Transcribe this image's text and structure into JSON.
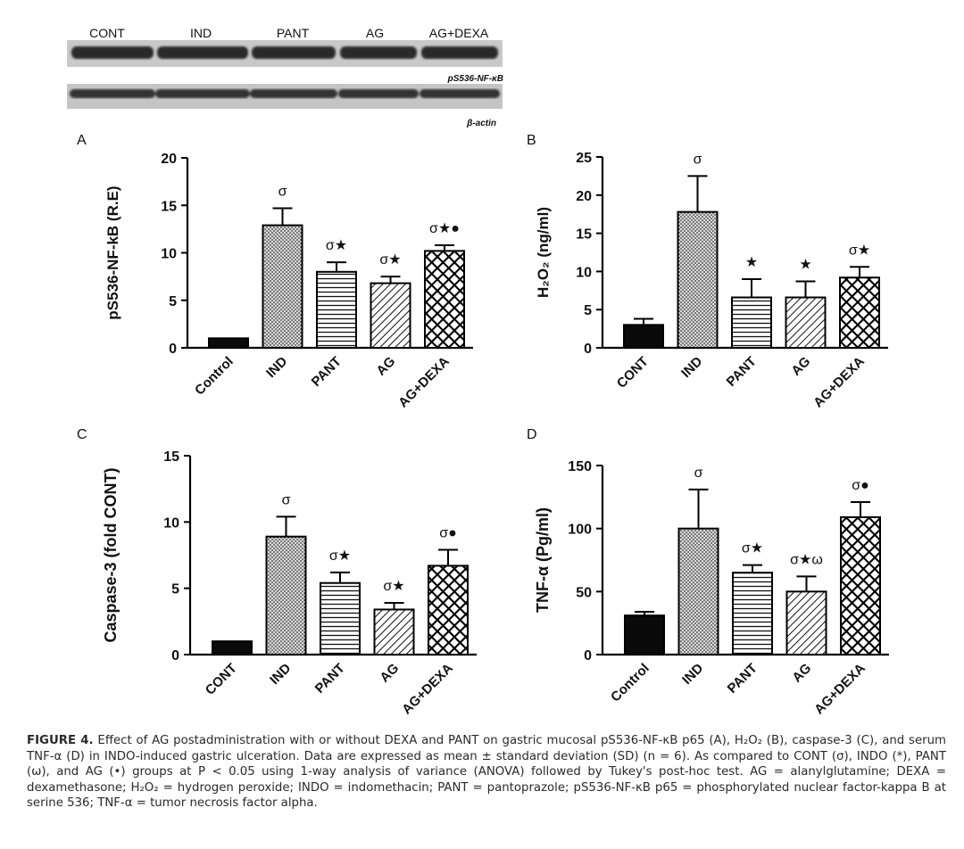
{
  "blot": {
    "lanes": [
      "CONT",
      "IND",
      "PANT",
      "AG",
      "AG+DEXA"
    ],
    "band1_label": "pS536-NF-κB",
    "band2_label": "β-actin"
  },
  "chart_data": [
    {
      "panel": "A",
      "type": "bar",
      "ylabel": "pS536-NF-kB (R.E)",
      "categories": [
        "Control",
        "IND",
        "PANT",
        "AG",
        "AG+DEXA"
      ],
      "values": [
        1.0,
        12.9,
        8.0,
        6.8,
        10.2
      ],
      "errors": [
        0.0,
        1.8,
        1.0,
        0.7,
        0.6
      ],
      "annotations": [
        "",
        "σ",
        "σ★",
        "σ★",
        "σ★●"
      ],
      "ylim": [
        0,
        20
      ],
      "yticks": [
        0,
        5,
        10,
        15,
        20
      ]
    },
    {
      "panel": "B",
      "type": "bar",
      "ylabel": "H₂O₂ (ng/ml)",
      "categories": [
        "CONT",
        "IND",
        "PANT",
        "AG",
        "AG+DEXA"
      ],
      "values": [
        3.0,
        17.8,
        6.6,
        6.6,
        9.2
      ],
      "errors": [
        0.8,
        4.7,
        2.4,
        2.1,
        1.4
      ],
      "annotations": [
        "",
        "σ",
        "★",
        "★",
        "σ★"
      ],
      "ylim": [
        0,
        25
      ],
      "yticks": [
        0,
        5,
        10,
        15,
        20,
        25
      ]
    },
    {
      "panel": "C",
      "type": "bar",
      "ylabel": "Caspase-3 (fold CONT)",
      "categories": [
        "CONT",
        "IND",
        "PANT",
        "AG",
        "AG+DEXA"
      ],
      "values": [
        1.0,
        8.9,
        5.4,
        3.4,
        6.7
      ],
      "errors": [
        0.0,
        1.5,
        0.8,
        0.5,
        1.2
      ],
      "annotations": [
        "",
        "σ",
        "σ★",
        "σ★",
        "σ●"
      ],
      "ylim": [
        0,
        15
      ],
      "yticks": [
        0,
        5,
        10,
        15
      ]
    },
    {
      "panel": "D",
      "type": "bar",
      "ylabel": "TNF-α (Pg/ml)",
      "categories": [
        "Control",
        "IND",
        "PANT",
        "AG",
        "AG+DEXA"
      ],
      "values": [
        31,
        100,
        65,
        50,
        109
      ],
      "errors": [
        3,
        31,
        6,
        12,
        12
      ],
      "annotations": [
        "",
        "σ",
        "σ★",
        "σ★ω",
        "σ●"
      ],
      "ylim": [
        0,
        150
      ],
      "yticks": [
        0,
        50,
        100,
        150
      ]
    }
  ],
  "caption": {
    "label": "FIGURE 4.",
    "text": "Effect of AG postadministration with or without DEXA and PANT on gastric mucosal pS536-NF-κB p65 (A), H₂O₂ (B), caspase-3 (C), and serum TNF-α (D) in INDO-induced gastric ulceration. Data are expressed as mean ± standard deviation (SD) (n = 6). As compared to CONT (σ), INDO (*), PANT (ω), and AG (•) groups at P < 0.05 using 1-way analysis of variance (ANOVA) followed by Tukey's post-hoc test. AG = alanylglutamine; DEXA = dexamethasone; H₂O₂ = hydrogen peroxide; INDO = indomethacin; PANT = pantoprazole; pS536-NF-κB p65 = phosphorylated nuclear factor-kappa B at serine 536; TNF-α = tumor necrosis factor alpha."
  }
}
